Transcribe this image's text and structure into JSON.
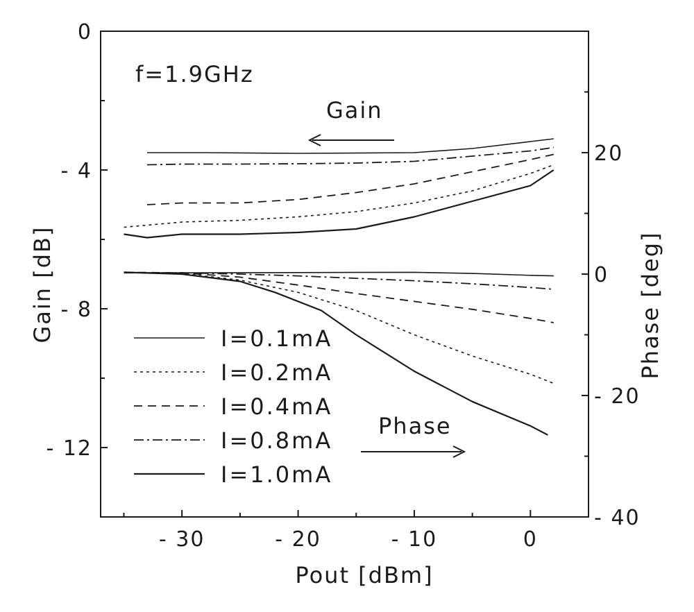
{
  "chart_data": {
    "type": "line",
    "title": "",
    "annotation_frequency": "f=1.9GHz",
    "annotation_gain": "Gain",
    "annotation_phase": "Phase",
    "xlabel": "Pout [dBm]",
    "ylabel_left": "Gain [dB]",
    "ylabel_right": "Phase [deg]",
    "xlim": [
      -37,
      5
    ],
    "ylim_left": [
      -14,
      0
    ],
    "ylim_right": [
      -40,
      40
    ],
    "xticks": [
      -30,
      -20,
      -10,
      0
    ],
    "xtick_labels": [
      "- 30",
      "- 20",
      "- 10",
      "0"
    ],
    "yticks_left": [
      0,
      -4,
      -8,
      -12
    ],
    "ytick_labels_left": [
      "0",
      "- 4",
      "- 8",
      "- 12"
    ],
    "yticks_right": [
      20,
      0,
      -20,
      -40
    ],
    "ytick_labels_right": [
      "20",
      "0",
      "- 20",
      "- 40"
    ],
    "grid": false,
    "legend_position": "bottom-left",
    "line_color": "#1a1a1a",
    "series": [
      {
        "name": "I=0.1mA",
        "dash": "solid-thin",
        "gain": {
          "x": [
            -33,
            -28,
            -20,
            -10,
            -5,
            0,
            2
          ],
          "y": [
            -3.5,
            -3.5,
            -3.52,
            -3.5,
            -3.38,
            -3.18,
            -3.1
          ]
        },
        "phase": {
          "x": [
            -35,
            -30,
            -20,
            -10,
            -5,
            0,
            2
          ],
          "y": [
            0.2,
            0.2,
            0.25,
            0.3,
            0.1,
            -0.2,
            -0.3
          ]
        }
      },
      {
        "name": "I=0.2mA",
        "dash": "dotted",
        "gain": {
          "x": [
            -35,
            -30,
            -25,
            -20,
            -15,
            -10,
            -5,
            0,
            2
          ],
          "y": [
            -5.65,
            -5.5,
            -5.45,
            -5.35,
            -5.2,
            -4.95,
            -4.6,
            -4.1,
            -3.85
          ]
        },
        "phase": {
          "x": [
            -35,
            -30,
            -25,
            -20,
            -15,
            -10,
            -5,
            0,
            2
          ],
          "y": [
            0.3,
            0.1,
            -1.0,
            -3.0,
            -6.0,
            -10.0,
            -13.5,
            -16.5,
            -18.0
          ]
        }
      },
      {
        "name": "I=0.4mA",
        "dash": "dashed",
        "gain": {
          "x": [
            -33,
            -30,
            -25,
            -20,
            -15,
            -10,
            -5,
            0,
            2
          ],
          "y": [
            -5.0,
            -4.95,
            -4.95,
            -4.85,
            -4.65,
            -4.4,
            -4.05,
            -3.7,
            -3.55
          ]
        },
        "phase": {
          "x": [
            -35,
            -30,
            -25,
            -20,
            -15,
            -10,
            -5,
            0,
            2
          ],
          "y": [
            0.3,
            0.2,
            -0.5,
            -1.8,
            -3.2,
            -4.5,
            -5.8,
            -7.3,
            -8.0
          ]
        }
      },
      {
        "name": "I=0.8mA",
        "dash": "dash-dot",
        "gain": {
          "x": [
            -33,
            -30,
            -25,
            -20,
            -15,
            -10,
            -5,
            0,
            2
          ],
          "y": [
            -3.85,
            -3.83,
            -3.83,
            -3.82,
            -3.8,
            -3.75,
            -3.6,
            -3.45,
            -3.35
          ]
        },
        "phase": {
          "x": [
            -35,
            -30,
            -25,
            -20,
            -15,
            -10,
            -5,
            0,
            2
          ],
          "y": [
            0.2,
            0.2,
            0.0,
            -0.3,
            -0.7,
            -1.1,
            -1.6,
            -2.2,
            -2.5
          ]
        }
      },
      {
        "name": "I=1.0mA",
        "dash": "solid",
        "gain": {
          "x": [
            -35,
            -33,
            -30,
            -25,
            -20,
            -15,
            -10,
            -5,
            0,
            2
          ],
          "y": [
            -5.85,
            -5.95,
            -5.85,
            -5.85,
            -5.8,
            -5.7,
            -5.35,
            -4.9,
            -4.45,
            -4.0
          ]
        },
        "phase": {
          "x": [
            -35,
            -30,
            -25,
            -22,
            -18,
            -15,
            -10,
            -5,
            0,
            1.5
          ],
          "y": [
            0.3,
            0.0,
            -1.2,
            -3.0,
            -6.0,
            -10.0,
            -16.0,
            -21.0,
            -25.0,
            -26.5
          ]
        }
      }
    ]
  }
}
